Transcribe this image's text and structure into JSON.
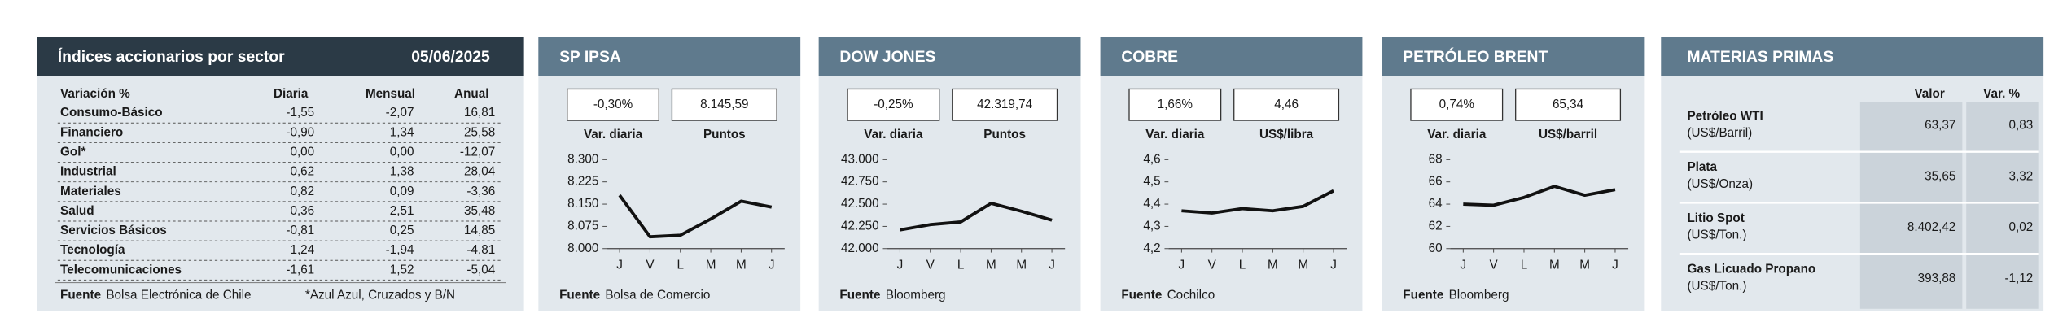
{
  "sectors": {
    "title": "Índices accionarios por sector",
    "date": "05/06/2025",
    "columns": [
      "Variación %",
      "Diaria",
      "Mensual",
      "Anual"
    ],
    "rows": [
      [
        "Consumo-Básico",
        "-1,55",
        "-2,07",
        "16,81"
      ],
      [
        "Financiero",
        "-0,90",
        "1,34",
        "25,58"
      ],
      [
        "Gol*",
        "0,00",
        "0,00",
        "-12,07"
      ],
      [
        "Industrial",
        "0,62",
        "1,38",
        "28,04"
      ],
      [
        "Materiales",
        "0,82",
        "0,09",
        "-3,36"
      ],
      [
        "Salud",
        "0,36",
        "2,51",
        "35,48"
      ],
      [
        "Servicios Básicos",
        "-0,81",
        "0,25",
        "14,85"
      ],
      [
        "Tecnología",
        "1,24",
        "-1,94",
        "-4,81"
      ],
      [
        "Telecomunicaciones",
        "-1,61",
        "1,52",
        "-5,04"
      ]
    ],
    "source_label": "Fuente",
    "source": "Bolsa Electrónica de Chile",
    "note": "*Azul Azul, Cruzados y B/N"
  },
  "chart_data": [
    {
      "type": "line",
      "title": "SP IPSA",
      "change": "-0,30%",
      "change_label": "Var. diaria",
      "level": "8.145,59",
      "level_label": "Puntos",
      "categories": [
        "J",
        "V",
        "L",
        "M",
        "M",
        "J"
      ],
      "values": [
        8180,
        8040,
        8045,
        8100,
        8160,
        8140
      ],
      "color": "#111111",
      "ylim": [
        8000,
        8300
      ],
      "yticks": [
        {
          "value": 8000,
          "label": "8.000"
        },
        {
          "value": 8075,
          "label": "8.075"
        },
        {
          "value": 8150,
          "label": "8.150"
        },
        {
          "value": 8225,
          "label": "8.225"
        },
        {
          "value": 8300,
          "label": "8.300"
        }
      ],
      "source_label": "Fuente",
      "source": "Bolsa de Comercio"
    },
    {
      "type": "line",
      "title": "DOW JONES",
      "change": "-0,25%",
      "change_label": "Var. diaria",
      "level": "42.319,74",
      "level_label": "Puntos",
      "categories": [
        "J",
        "V",
        "L",
        "M",
        "M",
        "J"
      ],
      "values": [
        42210,
        42270,
        42300,
        42510,
        42420,
        42320
      ],
      "color": "#111111",
      "ylim": [
        42000,
        43000
      ],
      "yticks": [
        {
          "value": 42000,
          "label": "42.000"
        },
        {
          "value": 42250,
          "label": "42.250"
        },
        {
          "value": 42500,
          "label": "42.500"
        },
        {
          "value": 42750,
          "label": "42.750"
        },
        {
          "value": 43000,
          "label": "43.000"
        }
      ],
      "source_label": "Fuente",
      "source": "Bloomberg"
    },
    {
      "type": "line",
      "title": "COBRE",
      "change": "1,66%",
      "change_label": "Var. diaria",
      "level": "4,46",
      "level_label": "US$/libra",
      "categories": [
        "J",
        "V",
        "L",
        "M",
        "M",
        "J"
      ],
      "values": [
        4.37,
        4.36,
        4.38,
        4.37,
        4.39,
        4.46
      ],
      "color": "#111111",
      "ylim": [
        4.2,
        4.6
      ],
      "yticks": [
        {
          "value": 4.2,
          "label": "4,2"
        },
        {
          "value": 4.3,
          "label": "4,3"
        },
        {
          "value": 4.4,
          "label": "4,4"
        },
        {
          "value": 4.5,
          "label": "4,5"
        },
        {
          "value": 4.6,
          "label": "4,6"
        }
      ],
      "source_label": "Fuente",
      "source": "Cochilco"
    },
    {
      "type": "line",
      "title": "PETRÓLEO BRENT",
      "change": "0,74%",
      "change_label": "Var. diaria",
      "level": "65,34",
      "level_label": "US$/barril",
      "categories": [
        "J",
        "V",
        "L",
        "M",
        "M",
        "J"
      ],
      "values": [
        64,
        63.9,
        64.6,
        65.6,
        64.8,
        65.3
      ],
      "color": "#111111",
      "ylim": [
        60,
        68
      ],
      "yticks": [
        60,
        62,
        64,
        66,
        68
      ],
      "source_label": "Fuente",
      "source": "Bloomberg"
    }
  ],
  "commodities": {
    "title": "MATERIAS PRIMAS",
    "columns": [
      "Valor",
      "Var. %"
    ],
    "rows": [
      {
        "name": "Petróleo WTI",
        "unit": "(US$/Barril)",
        "value": "63,37",
        "change": "0,83"
      },
      {
        "name": "Plata",
        "unit": "(US$/Onza)",
        "value": "35,65",
        "change": "3,32"
      },
      {
        "name": "Litio Spot",
        "unit": "(US$/Ton.)",
        "value": "8.402,42",
        "change": "0,02"
      },
      {
        "name": "Gas Licuado Propano",
        "unit": "(US$/Ton.)",
        "value": "393,88",
        "change": "-1,12"
      }
    ]
  }
}
